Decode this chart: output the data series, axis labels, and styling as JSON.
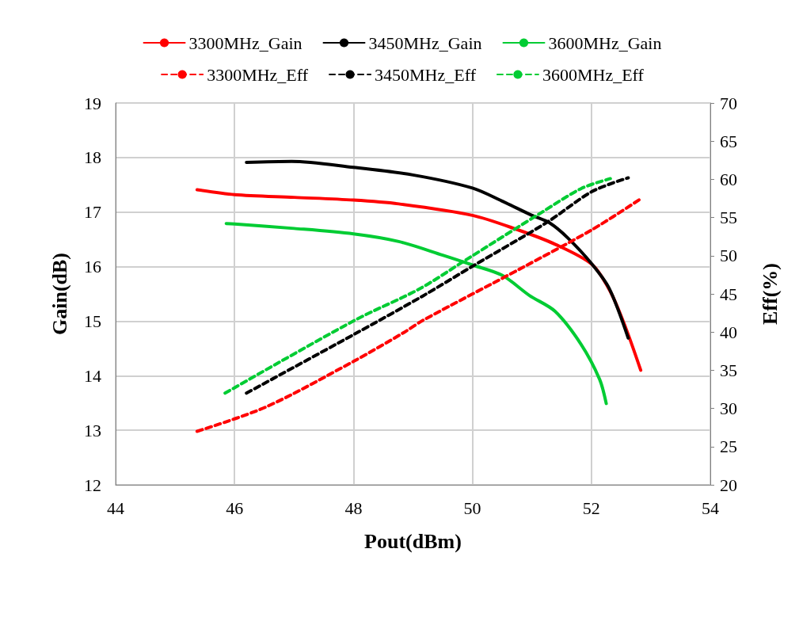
{
  "chart_data": {
    "type": "line",
    "xlabel": "Pout(dBm)",
    "ylabel": "Gain(dB)",
    "y2label": "Eff(%)",
    "xlim": [
      44,
      54
    ],
    "xticks": [
      44,
      46,
      48,
      50,
      52,
      54
    ],
    "ylim": [
      12,
      19
    ],
    "yticks": [
      12,
      13,
      14,
      15,
      16,
      17,
      18,
      19
    ],
    "y2lim": [
      20,
      70
    ],
    "y2ticks": [
      20,
      25,
      30,
      35,
      40,
      45,
      50,
      55,
      60,
      65,
      70
    ],
    "grid": true,
    "legend": "top",
    "marker": "none",
    "series": [
      {
        "name": "3300MHz_Gain",
        "color": "#ff0000",
        "line_style": "solid",
        "x": [
          45.37,
          46,
          47,
          48,
          48.76,
          50,
          50.75,
          51.39,
          52.01,
          52.32,
          52.58,
          52.83
        ],
        "values": [
          17.41,
          17.32,
          17.27,
          17.22,
          17.15,
          16.94,
          16.68,
          16.41,
          16.04,
          15.54,
          14.87,
          14.1
        ]
      },
      {
        "name": "3450MHz_Gain",
        "color": "#000000",
        "line_style": "solid",
        "x": [
          46.2,
          46.96,
          48,
          49,
          50,
          50.5,
          51,
          51.3,
          51.6,
          52,
          52.3,
          52.62
        ],
        "values": [
          17.91,
          17.93,
          17.82,
          17.68,
          17.44,
          17.2,
          16.94,
          16.8,
          16.53,
          16.06,
          15.6,
          14.69
        ]
      },
      {
        "name": "3600MHz_Gain",
        "color": "#00cc33",
        "line_style": "solid",
        "x": [
          45.86,
          46,
          47,
          48,
          48.76,
          49.5,
          50,
          50.5,
          50.96,
          51.39,
          51.83,
          52.14,
          52.25
        ],
        "values": [
          16.79,
          16.78,
          16.7,
          16.6,
          16.46,
          16.21,
          16.03,
          15.84,
          15.47,
          15.18,
          14.57,
          13.93,
          13.49
        ]
      },
      {
        "name": "3300MHz_Eff",
        "color": "#ff0000",
        "line_style": "dashed",
        "axis": "y2",
        "x": [
          45.37,
          46.53,
          48.01,
          48.86,
          49.16,
          50.83,
          52.01,
          52.84
        ],
        "values": [
          27.0,
          30.2,
          36.2,
          40.0,
          41.5,
          48.4,
          53.4,
          57.5
        ]
      },
      {
        "name": "3450MHz_Eff",
        "color": "#000000",
        "line_style": "dashed",
        "axis": "y2",
        "x": [
          46.2,
          48.01,
          49.16,
          50.04,
          51.26,
          52.01,
          52.62
        ],
        "values": [
          32.0,
          39.7,
          44.7,
          48.8,
          54.4,
          58.4,
          60.2
        ]
      },
      {
        "name": "3600MHz_Eff",
        "color": "#00cc33",
        "line_style": "dashed",
        "axis": "y2",
        "x": [
          45.84,
          48.01,
          49.12,
          49.9,
          51.17,
          51.83,
          52.32
        ],
        "values": [
          32.0,
          41.5,
          45.7,
          49.5,
          55.7,
          58.8,
          60.1
        ]
      }
    ]
  }
}
